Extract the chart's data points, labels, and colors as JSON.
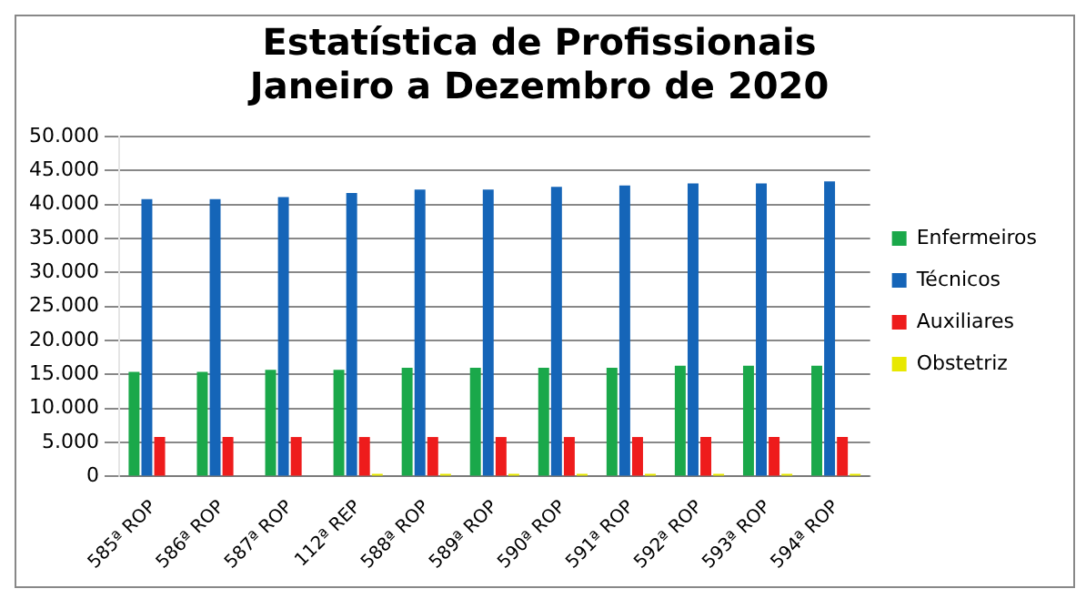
{
  "chart_data": {
    "type": "bar",
    "title": "Estatística de Profissionais\nJaneiro a Dezembro de 2020",
    "categories": [
      "585ª ROP",
      "586ª ROP",
      "587ª ROP",
      "112ª REP",
      "588ª ROP",
      "589ª ROP",
      "590ª ROP",
      "591ª ROP",
      "592ª ROP",
      "593ª ROP",
      "594ª ROP"
    ],
    "series": [
      {
        "name": "Enfermeiros",
        "color": "#1aa84a",
        "values": [
          15400,
          15400,
          15700,
          15700,
          16000,
          16000,
          16000,
          16000,
          16300,
          16300,
          16300
        ]
      },
      {
        "name": "Técnicos",
        "color": "#1565b8",
        "values": [
          40800,
          40800,
          41100,
          41700,
          42200,
          42200,
          42600,
          42800,
          43100,
          43100,
          43400
        ]
      },
      {
        "name": "Auxiliares",
        "color": "#ee1c1c",
        "values": [
          5800,
          5800,
          5800,
          5800,
          5800,
          5800,
          5800,
          5800,
          5800,
          5800,
          5800
        ]
      },
      {
        "name": "Obstetriz",
        "color": "#e8e800",
        "values": [
          0,
          0,
          0,
          400,
          400,
          400,
          400,
          400,
          400,
          400,
          400
        ]
      }
    ],
    "ylim": [
      0,
      50000
    ],
    "yticks": [
      {
        "value": 0,
        "label": "0"
      },
      {
        "value": 5000,
        "label": "5.000"
      },
      {
        "value": 10000,
        "label": "10.000"
      },
      {
        "value": 15000,
        "label": "15.000"
      },
      {
        "value": 20000,
        "label": "20.000"
      },
      {
        "value": 25000,
        "label": "25.000"
      },
      {
        "value": 30000,
        "label": "30.000"
      },
      {
        "value": 35000,
        "label": "35.000"
      },
      {
        "value": 40000,
        "label": "40.000"
      },
      {
        "value": 45000,
        "label": "45.000"
      },
      {
        "value": 50000,
        "label": "50.000"
      }
    ],
    "grid": "y",
    "legend": "right"
  }
}
